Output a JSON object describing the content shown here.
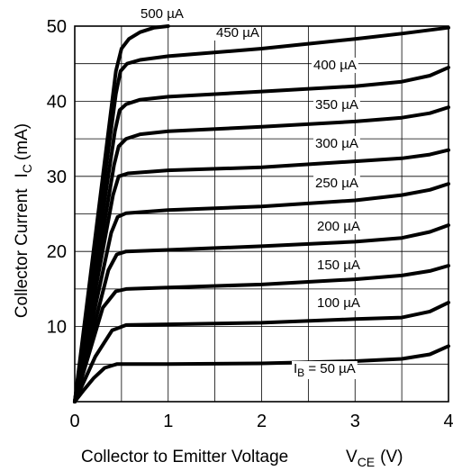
{
  "chart_data": {
    "type": "line",
    "title": "",
    "xlabel": {
      "main": "Collector to Emitter Voltage",
      "symbol": "V",
      "sub": "CE",
      "unit": "(V)"
    },
    "ylabel": {
      "main": "Collector Current",
      "symbol": "I",
      "sub": "C",
      "unit": "(mA)"
    },
    "xlim": [
      0,
      4
    ],
    "ylim": [
      0,
      50
    ],
    "xticks": [
      0,
      1,
      2,
      3,
      4
    ],
    "yticks": [
      10,
      20,
      30,
      40,
      50
    ],
    "grid": true,
    "series": [
      {
        "label": {
          "pre": "I",
          "sub": "B",
          "post": " = 50 µA"
        },
        "points": [
          [
            0,
            0
          ],
          [
            0.1,
            1.6
          ],
          [
            0.2,
            3.1
          ],
          [
            0.32,
            4.5
          ],
          [
            0.45,
            5.0
          ],
          [
            1.0,
            5.0
          ],
          [
            2.0,
            5.1
          ],
          [
            3.0,
            5.4
          ],
          [
            3.5,
            5.7
          ],
          [
            3.8,
            6.3
          ],
          [
            4.0,
            7.4
          ]
        ]
      },
      {
        "label": {
          "pre": "",
          "sub": "",
          "post": "100 µA"
        },
        "points": [
          [
            0,
            0
          ],
          [
            0.22,
            6.0
          ],
          [
            0.4,
            9.5
          ],
          [
            0.55,
            10.2
          ],
          [
            1.0,
            10.3
          ],
          [
            2.0,
            10.5
          ],
          [
            3.0,
            11.0
          ],
          [
            3.5,
            11.2
          ],
          [
            3.8,
            12.0
          ],
          [
            4.0,
            13.2
          ]
        ]
      },
      {
        "label": {
          "pre": "",
          "sub": "",
          "post": "150 µA"
        },
        "points": [
          [
            0,
            0
          ],
          [
            0.3,
            12.5
          ],
          [
            0.44,
            14.7
          ],
          [
            0.55,
            15.0
          ],
          [
            1.0,
            15.2
          ],
          [
            2.0,
            15.6
          ],
          [
            3.0,
            16.3
          ],
          [
            3.5,
            16.8
          ],
          [
            3.8,
            17.4
          ],
          [
            4.0,
            18.1
          ]
        ]
      },
      {
        "label": {
          "pre": "",
          "sub": "",
          "post": "200 µA"
        },
        "points": [
          [
            0,
            0
          ],
          [
            0.36,
            17.5
          ],
          [
            0.45,
            19.6
          ],
          [
            0.55,
            20.0
          ],
          [
            1.0,
            20.2
          ],
          [
            2.0,
            20.7
          ],
          [
            3.0,
            21.3
          ],
          [
            3.5,
            21.8
          ],
          [
            3.8,
            22.6
          ],
          [
            4.0,
            23.5
          ]
        ]
      },
      {
        "label": {
          "pre": "",
          "sub": "",
          "post": "250 µA"
        },
        "points": [
          [
            0,
            0
          ],
          [
            0.39,
            22.5
          ],
          [
            0.46,
            24.6
          ],
          [
            0.55,
            25.1
          ],
          [
            1.0,
            25.5
          ],
          [
            2.0,
            26.0
          ],
          [
            3.0,
            26.8
          ],
          [
            3.5,
            27.5
          ],
          [
            3.8,
            28.2
          ],
          [
            4.0,
            29.0
          ]
        ]
      },
      {
        "label": {
          "pre": "",
          "sub": "",
          "post": "300 µA"
        },
        "points": [
          [
            0,
            0
          ],
          [
            0.41,
            27.5
          ],
          [
            0.47,
            30.0
          ],
          [
            0.57,
            30.4
          ],
          [
            1.0,
            30.8
          ],
          [
            2.0,
            31.2
          ],
          [
            3.0,
            32.0
          ],
          [
            3.5,
            32.4
          ],
          [
            3.8,
            32.9
          ],
          [
            4.0,
            33.5
          ]
        ]
      },
      {
        "label": {
          "pre": "",
          "sub": "",
          "post": "350 µA"
        },
        "points": [
          [
            0,
            0
          ],
          [
            0.42,
            31.5
          ],
          [
            0.47,
            34.0
          ],
          [
            0.55,
            35.0
          ],
          [
            0.7,
            35.6
          ],
          [
            1.0,
            36.0
          ],
          [
            2.0,
            36.6
          ],
          [
            3.0,
            37.3
          ],
          [
            3.5,
            37.8
          ],
          [
            3.8,
            38.4
          ],
          [
            4.0,
            39.2
          ]
        ]
      },
      {
        "label": {
          "pre": "",
          "sub": "",
          "post": "400 µA"
        },
        "points": [
          [
            0,
            0
          ],
          [
            0.43,
            36.0
          ],
          [
            0.48,
            38.8
          ],
          [
            0.55,
            39.6
          ],
          [
            0.7,
            40.2
          ],
          [
            1.0,
            40.6
          ],
          [
            2.0,
            41.3
          ],
          [
            3.0,
            42.0
          ],
          [
            3.5,
            42.6
          ],
          [
            3.8,
            43.4
          ],
          [
            4.0,
            44.5
          ]
        ]
      },
      {
        "label": {
          "pre": "",
          "sub": "",
          "post": "450 µA"
        },
        "points": [
          [
            0,
            0
          ],
          [
            0.44,
            41.0
          ],
          [
            0.49,
            44.0
          ],
          [
            0.56,
            45.0
          ],
          [
            0.7,
            45.5
          ],
          [
            1.0,
            46.0
          ],
          [
            2.0,
            47.0
          ],
          [
            3.0,
            48.3
          ],
          [
            3.5,
            49.0
          ],
          [
            4.0,
            49.8
          ]
        ]
      },
      {
        "label": {
          "pre": "",
          "sub": "",
          "post": "500 µA"
        },
        "points": [
          [
            0,
            0
          ],
          [
            0.44,
            44.0
          ],
          [
            0.5,
            47.0
          ],
          [
            0.58,
            48.3
          ],
          [
            0.7,
            49.2
          ],
          [
            0.85,
            49.8
          ],
          [
            1.0,
            50.0
          ]
        ]
      }
    ]
  }
}
